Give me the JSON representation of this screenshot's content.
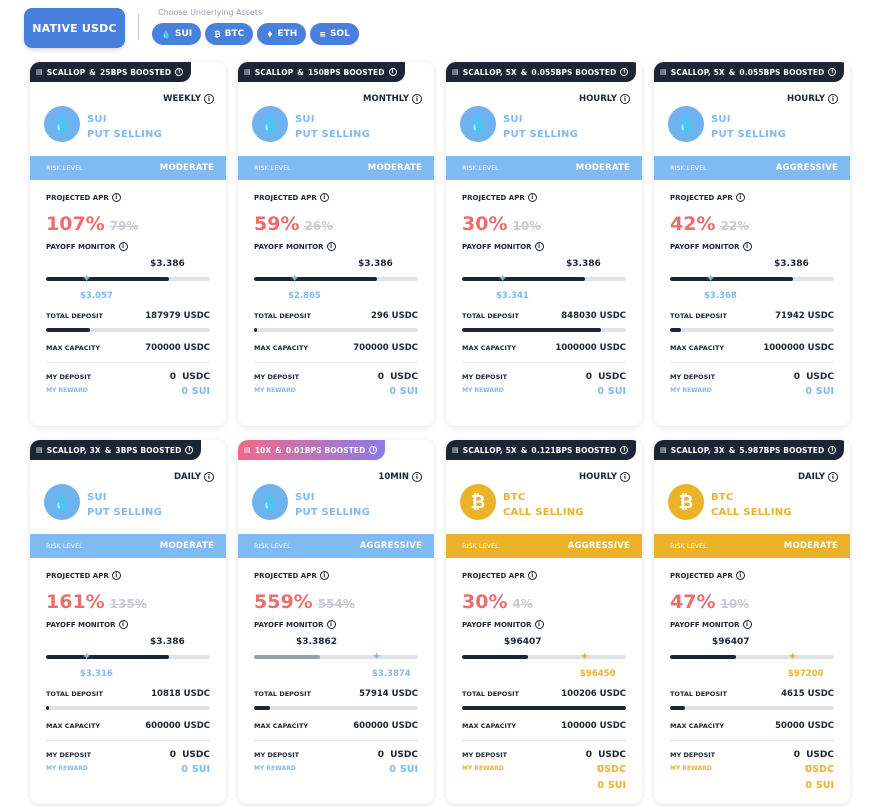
{
  "header": {
    "native_label": "NATIVE USDC",
    "assets_label": "Choose Underlying Assets",
    "chips": [
      {
        "icon": "💧",
        "label": "SUI"
      },
      {
        "icon": "₿",
        "label": "BTC"
      },
      {
        "icon": "♦",
        "label": "ETH"
      },
      {
        "icon": "≡",
        "label": "SOL"
      }
    ]
  },
  "labels": {
    "risk_level": "RISK LEVEL",
    "projected_apr": "PROJECTED APR",
    "payoff_monitor": "PAYOFF MONITOR",
    "total_deposit": "TOTAL DEPOSIT",
    "max_capacity": "MAX CAPACITY",
    "my_deposit": "MY DEPOSIT",
    "my_reward": "MY REWARD"
  },
  "colors": {
    "sui": "#7fbaf2",
    "btc": "#eab32a",
    "apr": "#ec6d6d",
    "dark": "#1b2535",
    "accent": "#4a80dd"
  },
  "cards": [
    {
      "boost_a": "SCALLOP",
      "boost_b": "25BPS BOOSTED",
      "freq": "WEEKLY",
      "asset": "SUI",
      "strategy": "PUT SELLING",
      "kind": "sui",
      "risk": "MODERATE",
      "apr": "107%",
      "apr_old": "79%",
      "strike": "$3.386",
      "spot": "$3.057",
      "payoff_fill": 0.75,
      "spot_pos": 0.25,
      "total_deposit": "187979 USDC",
      "deposit_fill": 0.27,
      "max_capacity": "700000 USDC",
      "my_deposit": "0",
      "my_deposit_unit": "USDC",
      "my_reward": "0",
      "my_reward_unit": "SUI"
    },
    {
      "boost_a": "SCALLOP",
      "boost_b": "150BPS BOOSTED",
      "freq": "MONTHLY",
      "asset": "SUI",
      "strategy": "PUT SELLING",
      "kind": "sui",
      "risk": "MODERATE",
      "apr": "59%",
      "apr_old": "26%",
      "strike": "$3.386",
      "spot": "$2.865",
      "payoff_fill": 0.75,
      "spot_pos": 0.25,
      "total_deposit": "296 USDC",
      "deposit_fill": 0.0,
      "max_capacity": "700000 USDC",
      "my_deposit": "0",
      "my_deposit_unit": "USDC",
      "my_reward": "0",
      "my_reward_unit": "SUI"
    },
    {
      "boost_a": "SCALLOP, 5X",
      "boost_b": "0.055BPS BOOSTED",
      "freq": "HOURLY",
      "asset": "SUI",
      "strategy": "PUT SELLING",
      "kind": "sui",
      "risk": "MODERATE",
      "apr": "30%",
      "apr_old": "10%",
      "strike": "$3.386",
      "spot": "$3.341",
      "payoff_fill": 0.75,
      "spot_pos": 0.25,
      "total_deposit": "848030 USDC",
      "deposit_fill": 0.85,
      "max_capacity": "1000000 USDC",
      "my_deposit": "0",
      "my_deposit_unit": "USDC",
      "my_reward": "0",
      "my_reward_unit": "SUI"
    },
    {
      "boost_a": "SCALLOP, 5X",
      "boost_b": "0.055BPS BOOSTED",
      "freq": "HOURLY",
      "asset": "SUI",
      "strategy": "PUT SELLING",
      "kind": "sui",
      "risk": "AGGRESSIVE",
      "apr": "42%",
      "apr_old": "22%",
      "strike": "$3.386",
      "spot": "$3.368",
      "payoff_fill": 0.75,
      "spot_pos": 0.25,
      "total_deposit": "71942 USDC",
      "deposit_fill": 0.07,
      "max_capacity": "1000000 USDC",
      "my_deposit": "0",
      "my_deposit_unit": "USDC",
      "my_reward": "0",
      "my_reward_unit": "SUI"
    },
    {
      "boost_a": "SCALLOP, 3X",
      "boost_b": "3BPS BOOSTED",
      "freq": "DAILY",
      "asset": "SUI",
      "strategy": "PUT SELLING",
      "kind": "sui",
      "risk": "MODERATE",
      "apr": "161%",
      "apr_old": "135%",
      "strike": "$3.386",
      "spot": "$3.316",
      "payoff_fill": 0.75,
      "spot_pos": 0.25,
      "total_deposit": "10818 USDC",
      "deposit_fill": 0.018,
      "max_capacity": "600000 USDC",
      "my_deposit": "0",
      "my_deposit_unit": "USDC",
      "my_reward": "0",
      "my_reward_unit": "SUI"
    },
    {
      "boost_a": "10X",
      "boost_b": "0.01BPS BOOSTED",
      "freq": "10MIN",
      "asset": "SUI",
      "strategy": "PUT SELLING",
      "kind": "sui",
      "pink": true,
      "risk": "AGGRESSIVE",
      "apr": "559%",
      "apr_old": "554%",
      "strike": "$3.3862",
      "spot": "$3.3874",
      "payoff_fill": 0.4,
      "payoff_grey": true,
      "spot_pos": 0.75,
      "total_deposit": "57914 USDC",
      "deposit_fill": 0.1,
      "max_capacity": "600000 USDC",
      "my_deposit": "0",
      "my_deposit_unit": "USDC",
      "my_reward": "0",
      "my_reward_unit": "SUI"
    },
    {
      "boost_a": "SCALLOP, 5X",
      "boost_b": "0.121BPS BOOSTED",
      "freq": "HOURLY",
      "asset": "BTC",
      "strategy": "CALL SELLING",
      "kind": "btc",
      "risk": "AGGRESSIVE",
      "apr": "30%",
      "apr_old": "4%",
      "strike": "$96407",
      "spot": "$96450",
      "payoff_fill": 0.4,
      "spot_pos": 0.75,
      "total_deposit": "100206 USDC",
      "deposit_fill": 1.0,
      "max_capacity": "100000 USDC",
      "my_deposit": "0",
      "my_deposit_unit": "USDC",
      "my_reward": "0",
      "my_reward_unit": "USDC",
      "my_reward_2": "0",
      "my_reward_2_unit": "SUI"
    },
    {
      "boost_a": "SCALLOP, 3X",
      "boost_b": "5.987BPS BOOSTED",
      "freq": "DAILY",
      "asset": "BTC",
      "strategy": "CALL SELLING",
      "kind": "btc",
      "risk": "MODERATE",
      "apr": "47%",
      "apr_old": "10%",
      "strike": "$96407",
      "spot": "$97200",
      "payoff_fill": 0.4,
      "spot_pos": 0.75,
      "total_deposit": "4615 USDC",
      "deposit_fill": 0.09,
      "max_capacity": "50000 USDC",
      "my_deposit": "0",
      "my_deposit_unit": "USDC",
      "my_reward": "0",
      "my_reward_unit": "USDC",
      "my_reward_2": "0",
      "my_reward_2_unit": "SUI"
    }
  ]
}
